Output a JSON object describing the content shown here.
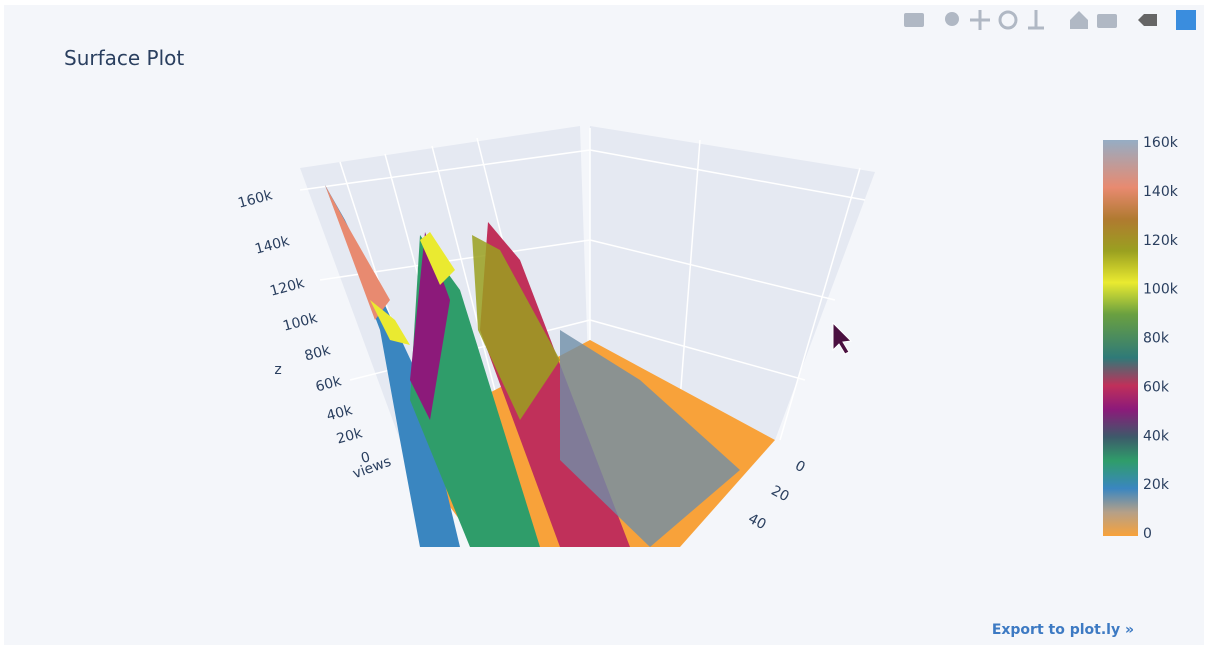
{
  "header": {
    "title": "Surface Plot"
  },
  "scene": {
    "z_axis": {
      "title": "z",
      "ticks": [
        "0",
        "20k",
        "40k",
        "60k",
        "80k",
        "100k",
        "120k",
        "140k",
        "160k"
      ]
    },
    "y_axis": {
      "title": "views"
    },
    "x_axis": {
      "ticks": [
        "0",
        "20",
        "40"
      ]
    }
  },
  "colorbar": {
    "ticks": [
      "0",
      "20k",
      "40k",
      "60k",
      "80k",
      "100k",
      "120k",
      "140k",
      "160k"
    ]
  },
  "footer": {
    "link": "Export to plot.ly »"
  }
}
